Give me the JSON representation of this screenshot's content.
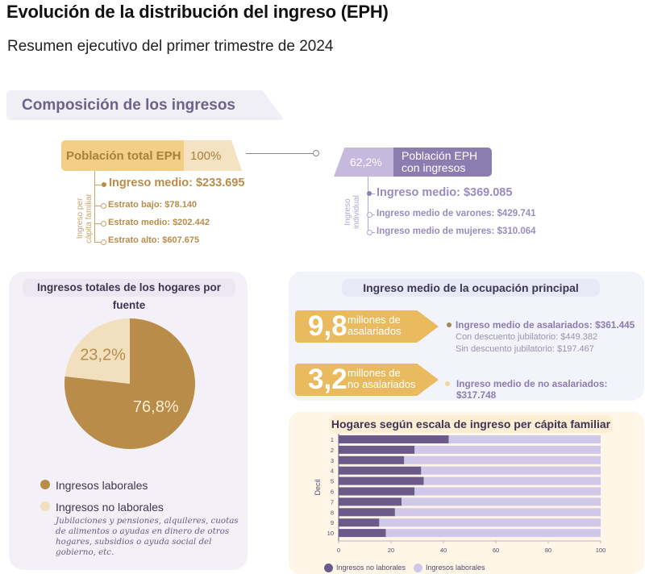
{
  "header": {
    "title": "Evolución de la distribución del ingreso (EPH)",
    "subtitle": "Resumen ejecutivo del primer trimestre de 2024"
  },
  "section": {
    "title": "Composición de los ingresos"
  },
  "total_population": {
    "label": "Población total EPH",
    "percent": "100%",
    "axis_label_line1": "Ingreso per",
    "axis_label_line2": "cápita familiar",
    "items": [
      {
        "text": "Ingreso medio: $233.695",
        "primary": true
      },
      {
        "text": "Estrato bajo: $78.140",
        "primary": false
      },
      {
        "text": "Estrato medio: $202.442",
        "primary": false
      },
      {
        "text": "Estrato alto: $607.675",
        "primary": false
      }
    ]
  },
  "income_population": {
    "percent": "62,2%",
    "label_line1": "Población EPH",
    "label_line2": "con ingresos",
    "axis_label_line1": "Ingreso",
    "axis_label_line2": "individual",
    "items": [
      {
        "text": "Ingreso medio: $369.085",
        "primary": true
      },
      {
        "text": "Ingreso medio de varones: $429.741",
        "primary": false
      },
      {
        "text": "Ingreso medio de mujeres: $310.064",
        "primary": false
      }
    ]
  },
  "colors": {
    "tan": "#b98c4a",
    "tan_light": "#f1dfbe",
    "gold": "#e9bb5e",
    "purple": "#8d7cb0",
    "purple_dark": "#6c5b8a",
    "purple_light": "#cfc8e8"
  },
  "pie_panel": {
    "title": "Ingresos totales de los hogares por fuente",
    "legend": [
      {
        "label": "Ingresos laborales"
      },
      {
        "label": "Ingresos no laborales",
        "note": "Jubilaciones y pensiones, alquileres, cuotas de alimentos o ayudas en dinero de otros hogares, subsidios o ayuda social del gobierno, etc."
      }
    ]
  },
  "occupation_panel": {
    "title": "Ingreso medio de la ocupación principal",
    "salaried": {
      "number": "9,8",
      "label_line1": "millones de",
      "label_line2": "asalariados",
      "main": "Ingreso medio de asalariados: $361.445",
      "sub1": "Con descuento jubilatorio: $449.382",
      "sub2": "Sin descuento jubilatorio: $197.467"
    },
    "non_salaried": {
      "number": "3,2",
      "label_line1": "millones de",
      "label_line2": "no asalariados",
      "main": "Ingreso medio de no asalariados: $317.748"
    }
  },
  "chart_data": [
    {
      "type": "pie",
      "title": "Ingresos totales de los hogares por fuente",
      "slices": [
        {
          "label": "Ingresos laborales",
          "value": 76.8,
          "display": "76,8%",
          "color": "#b98c4a"
        },
        {
          "label": "Ingresos no laborales",
          "value": 23.2,
          "display": "23,2%",
          "color": "#f1dfbe"
        }
      ]
    },
    {
      "type": "bar",
      "orientation": "horizontal",
      "stacked": true,
      "title": "Hogares según escala de ingreso per cápita familiar",
      "ylabel": "Decil",
      "xlabel": "",
      "categories": [
        "1",
        "2",
        "3",
        "4",
        "5",
        "6",
        "7",
        "8",
        "9",
        "10"
      ],
      "xlim": [
        0,
        100
      ],
      "xticks": [
        "0",
        "20",
        "40",
        "60",
        "80",
        "100"
      ],
      "series": [
        {
          "name": "Ingresos no laborales",
          "color": "#6c5b8a",
          "values": [
            42,
            29,
            25,
            31.5,
            32.5,
            29,
            24,
            21.5,
            15.5,
            18
          ]
        },
        {
          "name": "Ingresos laborales",
          "color": "#cfc8e8",
          "values": [
            58,
            71,
            75,
            68.5,
            67.5,
            71,
            76,
            78.5,
            84.5,
            82
          ]
        }
      ]
    }
  ]
}
